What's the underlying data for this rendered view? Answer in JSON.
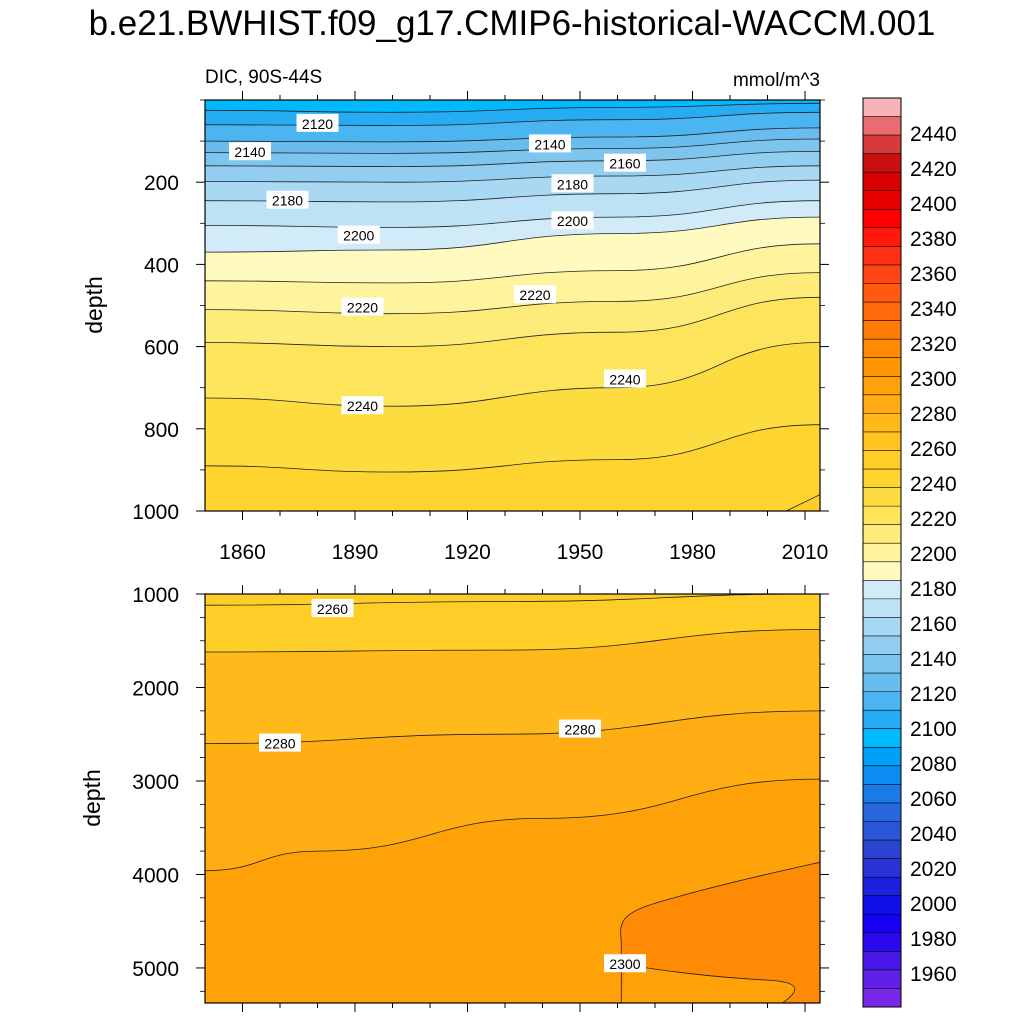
{
  "title": "b.e21.BWHIST.f09_g17.CMIP6-historical-WACCM.001",
  "chart_data": [
    {
      "type": "contour",
      "panel": "upper",
      "left_label": "DIC, 90S-44S",
      "right_label": "mmol/m^3",
      "ylabel": "depth",
      "xlabel": "",
      "x_range": [
        1850,
        2014
      ],
      "y_range": [
        0,
        1000
      ],
      "y_reversed": true,
      "x_ticks": [
        1860,
        1890,
        1920,
        1950,
        1980,
        2010
      ],
      "y_ticks": [
        200,
        400,
        600,
        800,
        1000
      ],
      "contours": [
        {
          "level": 2120,
          "x": [
            1850,
            1900,
            1960,
            2014
          ],
          "depth": [
            25,
            30,
            18,
            8
          ]
        },
        {
          "level": 2130,
          "x": [
            1850,
            1900,
            1960,
            2014
          ],
          "depth": [
            60,
            62,
            48,
            30
          ]
        },
        {
          "level": 2140,
          "x": [
            1850,
            1900,
            1960,
            2014
          ],
          "depth": [
            100,
            102,
            90,
            68
          ]
        },
        {
          "level": 2150,
          "x": [
            1850,
            1900,
            1960,
            2014
          ],
          "depth": [
            128,
            130,
            118,
            95
          ]
        },
        {
          "level": 2160,
          "x": [
            1850,
            1900,
            1960,
            2014
          ],
          "depth": [
            160,
            162,
            148,
            125
          ]
        },
        {
          "level": 2170,
          "x": [
            1850,
            1900,
            1960,
            2014
          ],
          "depth": [
            198,
            200,
            185,
            160
          ]
        },
        {
          "level": 2180,
          "x": [
            1850,
            1900,
            1960,
            2014
          ],
          "depth": [
            245,
            248,
            228,
            195
          ]
        },
        {
          "level": 2190,
          "x": [
            1850,
            1900,
            1960,
            2014
          ],
          "depth": [
            305,
            310,
            285,
            245
          ]
        },
        {
          "level": 2200,
          "x": [
            1850,
            1900,
            1960,
            2014
          ],
          "depth": [
            370,
            365,
            325,
            285
          ]
        },
        {
          "level": 2210,
          "x": [
            1850,
            1900,
            1960,
            2014
          ],
          "depth": [
            440,
            445,
            415,
            350
          ]
        },
        {
          "level": 2220,
          "x": [
            1850,
            1900,
            1960,
            2014
          ],
          "depth": [
            510,
            520,
            490,
            420
          ]
        },
        {
          "level": 2230,
          "x": [
            1850,
            1900,
            1960,
            2014
          ],
          "depth": [
            590,
            600,
            565,
            480
          ]
        },
        {
          "level": 2240,
          "x": [
            1850,
            1900,
            1960,
            2014
          ],
          "depth": [
            725,
            745,
            700,
            590
          ]
        },
        {
          "level": 2250,
          "x": [
            1850,
            1900,
            1960,
            2014
          ],
          "depth": [
            890,
            905,
            875,
            790
          ]
        },
        {
          "level": 2260,
          "x": [
            2005,
            2014
          ],
          "depth": [
            1000,
            960
          ]
        }
      ],
      "labels": [
        {
          "text": "2120",
          "x": 1880,
          "depth": 58
        },
        {
          "text": "2140",
          "x": 1942,
          "depth": 108
        },
        {
          "text": "2140",
          "x": 1862,
          "depth": 127
        },
        {
          "text": "2160",
          "x": 1962,
          "depth": 155
        },
        {
          "text": "2180",
          "x": 1948,
          "depth": 205
        },
        {
          "text": "2180",
          "x": 1872,
          "depth": 245
        },
        {
          "text": "2200",
          "x": 1948,
          "depth": 295
        },
        {
          "text": "2200",
          "x": 1891,
          "depth": 330
        },
        {
          "text": "2220",
          "x": 1938,
          "depth": 475
        },
        {
          "text": "2220",
          "x": 1892,
          "depth": 505
        },
        {
          "text": "2240",
          "x": 1962,
          "depth": 680
        },
        {
          "text": "2240",
          "x": 1892,
          "depth": 745
        }
      ]
    },
    {
      "type": "contour",
      "panel": "lower",
      "left_label": "",
      "right_label": "",
      "ylabel": "depth",
      "xlabel": "",
      "x_range": [
        1850,
        2014
      ],
      "y_range": [
        1000,
        5375
      ],
      "y_reversed": true,
      "y_ticks": [
        1000,
        2000,
        3000,
        4000,
        5000
      ],
      "contours": [
        {
          "level": 2260,
          "x": [
            1850,
            1930,
            2014
          ],
          "depth": [
            1120,
            1080,
            1000
          ]
        },
        {
          "level": 2270,
          "x": [
            1850,
            1930,
            2014
          ],
          "depth": [
            1620,
            1600,
            1380
          ]
        },
        {
          "level": 2280,
          "x": [
            1850,
            1930,
            2014
          ],
          "depth": [
            2600,
            2500,
            2250
          ]
        },
        {
          "level": 2290,
          "x": [
            1850,
            1880,
            1940,
            2014
          ],
          "depth": [
            3960,
            3750,
            3400,
            2980
          ]
        },
        {
          "level": 2300,
          "x": [
            1961,
            1961,
            1990,
            2010,
            2004,
            2014
          ],
          "depth": [
            5375,
            4400,
            5100,
            5150,
            5375,
            3870
          ]
        }
      ],
      "labels": [
        {
          "text": "2260",
          "x": 1884,
          "depth": 1160
        },
        {
          "text": "2280",
          "x": 1870,
          "depth": 2600
        },
        {
          "text": "2280",
          "x": 1950,
          "depth": 2450
        },
        {
          "text": "2300",
          "x": 1962,
          "depth": 4960
        }
      ]
    }
  ],
  "colorbar": {
    "ticks": [
      "2440",
      "2420",
      "2400",
      "2380",
      "2360",
      "2340",
      "2320",
      "2300",
      "2280",
      "2260",
      "2240",
      "2220",
      "2200",
      "2180",
      "2160",
      "2140",
      "2120",
      "2100",
      "2080",
      "2060",
      "2040",
      "2020",
      "2000",
      "1980",
      "1960"
    ],
    "colors_top_to_bottom": [
      "#f8b3b8",
      "#e86c70",
      "#d83a3b",
      "#c81010",
      "#d80000",
      "#e80000",
      "#ff0000",
      "#ff1a0d",
      "#ff2e16",
      "#ff4513",
      "#ff5a10",
      "#ff6b0c",
      "#ff7c08",
      "#ff8a05",
      "#ff9500",
      "#ffa108",
      "#ffad12",
      "#ffb91a",
      "#ffc322",
      "#ffcd28",
      "#ffd42e",
      "#fddc40",
      "#fde45a",
      "#fdec7a",
      "#fef49e",
      "#fffac0",
      "#d2ebf8",
      "#bde1f5",
      "#a8d8f2",
      "#93cef0",
      "#7ec5ee",
      "#68bdee",
      "#4ab5f0",
      "#25acf2",
      "#00b9ff",
      "#009ff8",
      "#0a8cf0",
      "#1a7ae8",
      "#2866e0",
      "#2a55d8",
      "#2a44d0",
      "#2a33d6",
      "#1a22e0",
      "#0f10e8",
      "#1800f0",
      "#2a08f0",
      "#4818e8",
      "#6020e8",
      "#7a28e8"
    ]
  }
}
